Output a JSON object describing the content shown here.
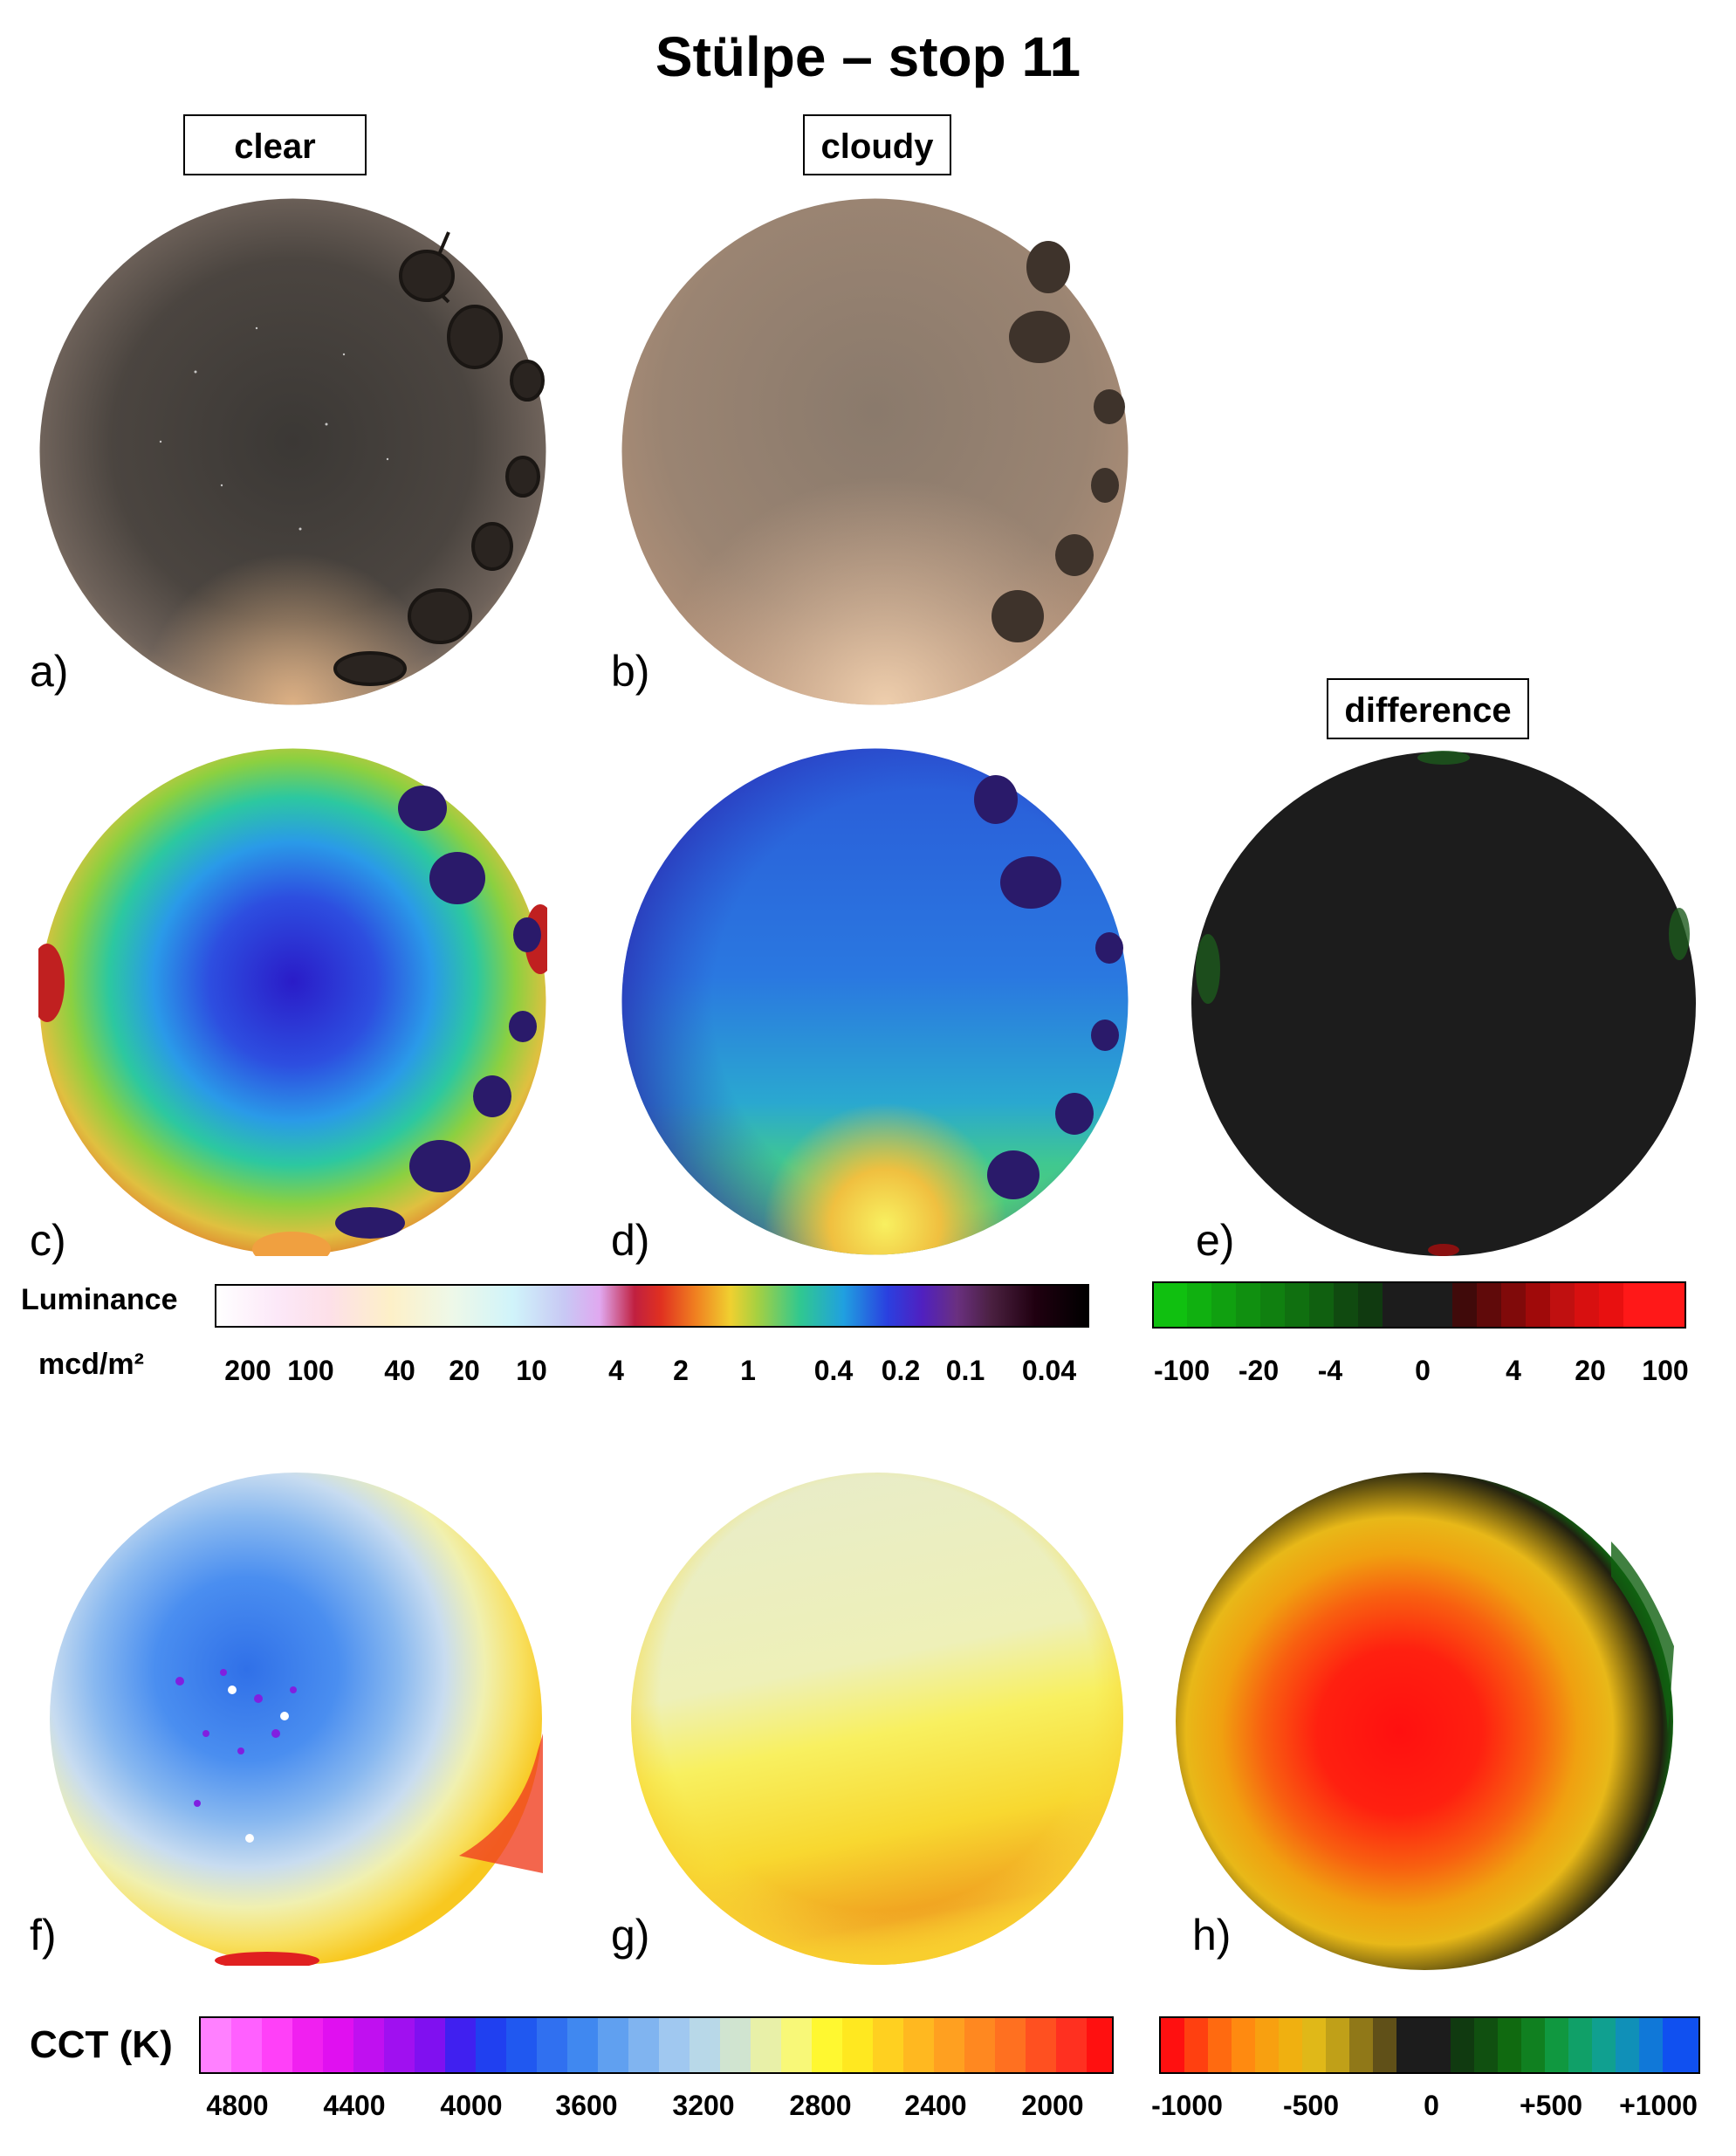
{
  "title": "Stülpe – stop 11",
  "column_labels": {
    "clear": "clear",
    "cloudy": "cloudy",
    "difference": "difference"
  },
  "panel_letters": [
    "a)",
    "b)",
    "c)",
    "d)",
    "e)",
    "f)",
    "g)",
    "h)"
  ],
  "luminance_scale": {
    "label": "Luminance",
    "unit": "mcd/m²",
    "ticks": [
      "200",
      "100",
      "40",
      "20",
      "10",
      "4",
      "2",
      "1",
      "0.4",
      "0.2",
      "0.1",
      "0.04"
    ]
  },
  "luminance_difference_scale": {
    "ticks": [
      "-100",
      "-20",
      "-4",
      "0",
      "4",
      "20",
      "100"
    ]
  },
  "cct_scale": {
    "label": "CCT (K)",
    "ticks": [
      "4800",
      "4400",
      "4000",
      "3600",
      "3200",
      "2800",
      "2400",
      "2000"
    ]
  },
  "cct_difference_scale": {
    "ticks": [
      "-1000",
      "-500",
      "0",
      "+500",
      "+1000"
    ]
  }
}
